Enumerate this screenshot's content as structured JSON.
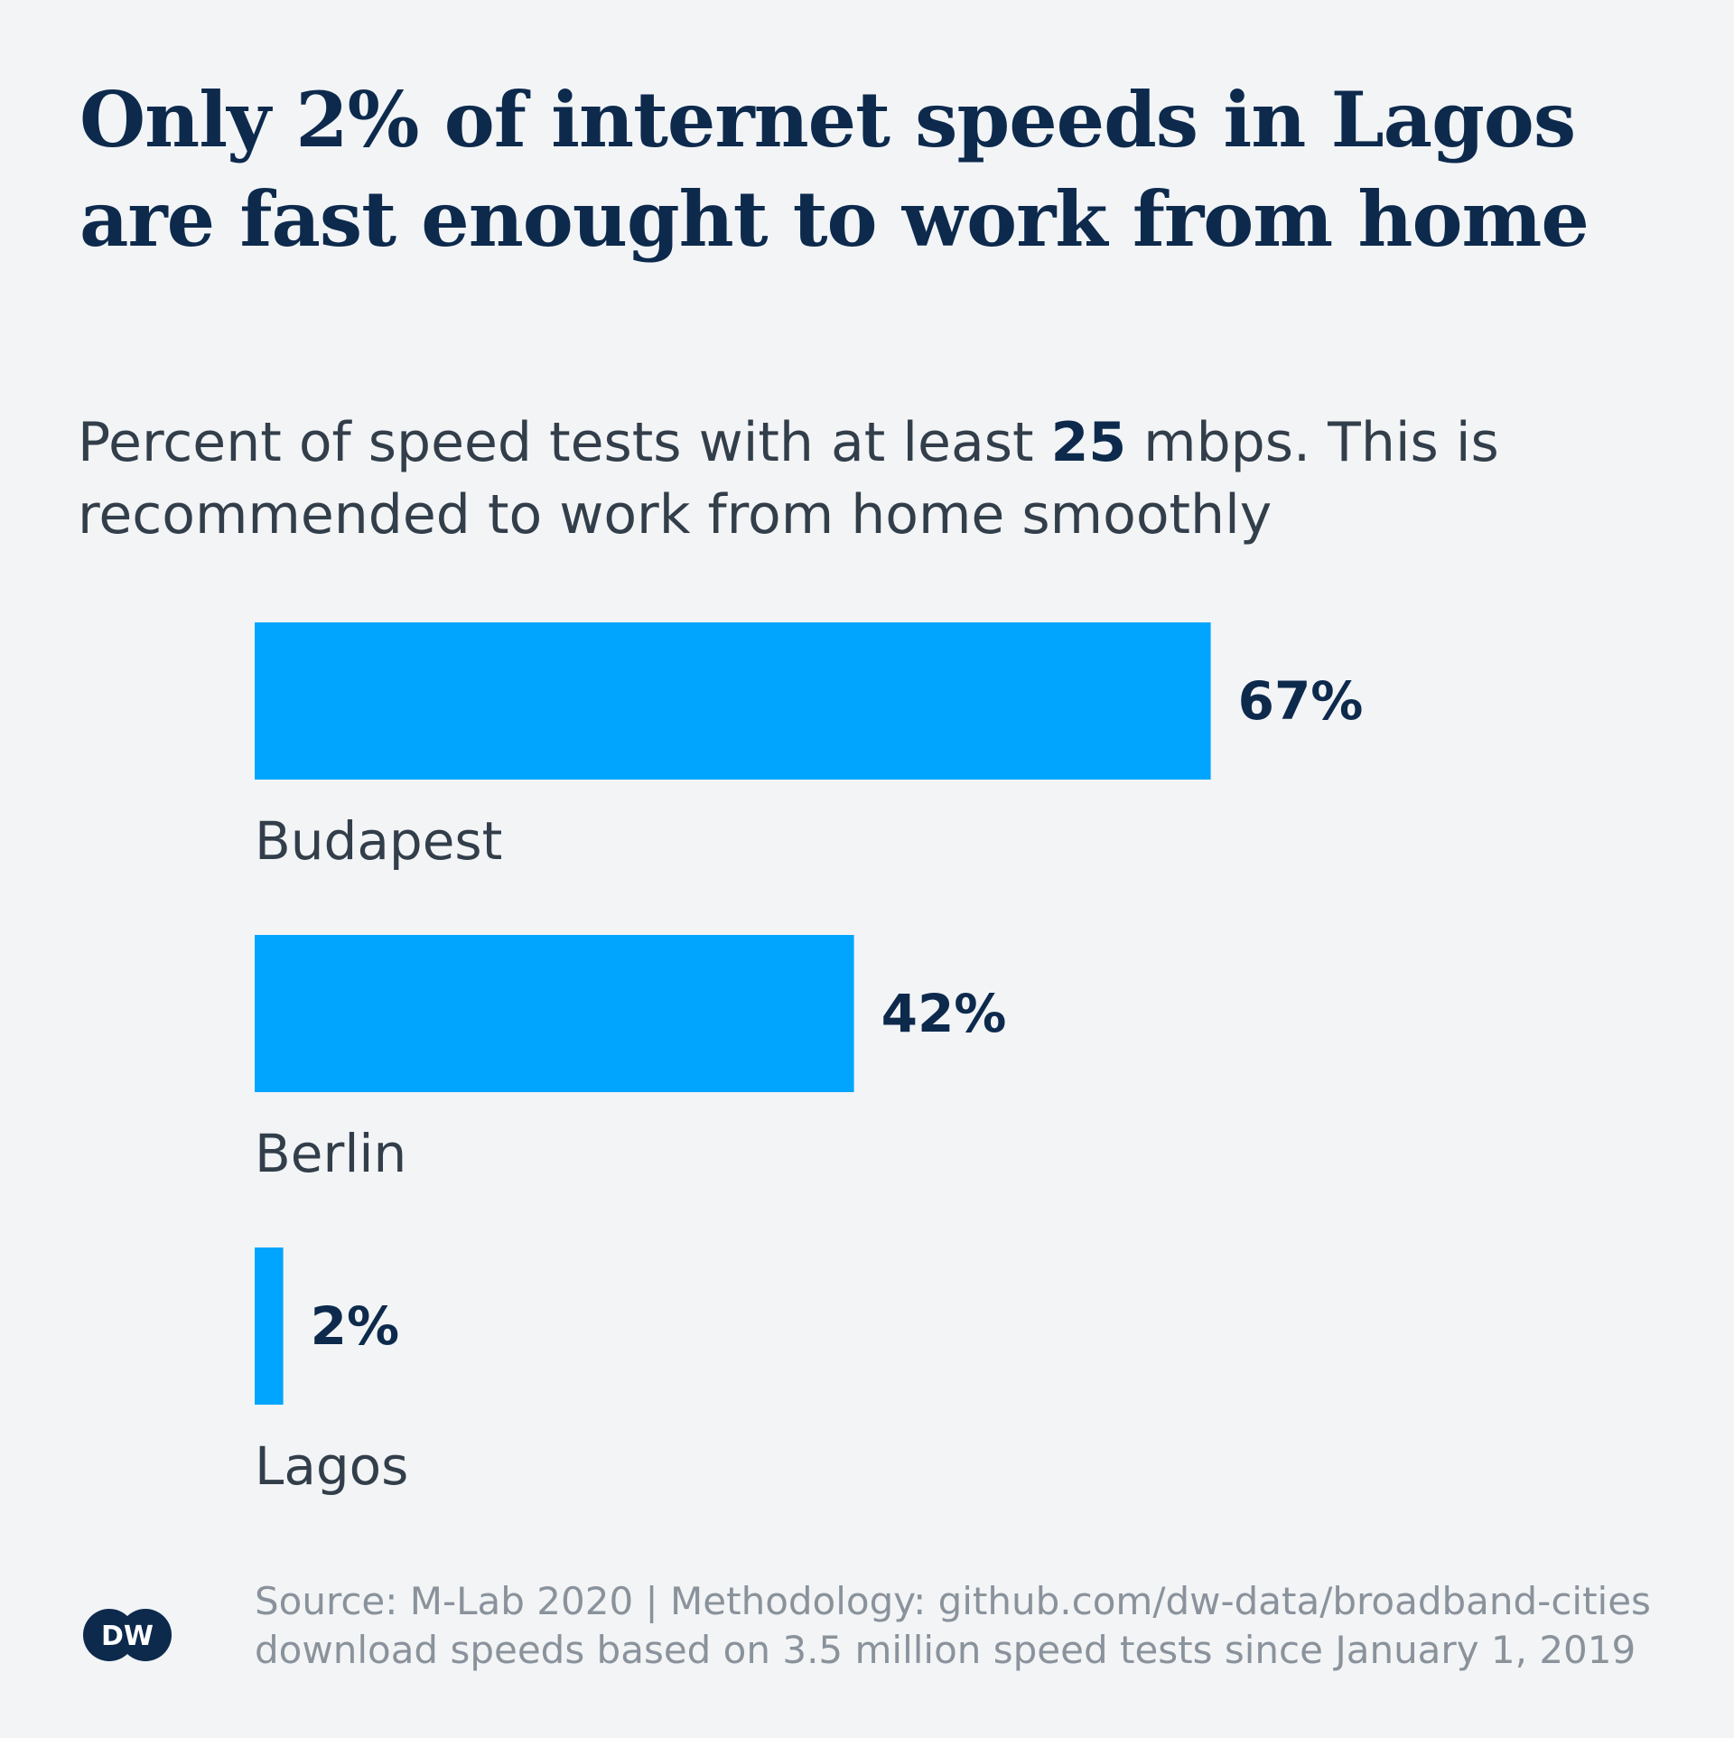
{
  "header": {
    "title": "Only 2% of internet speeds in Lagos are fast enought to work from home",
    "subtitle_before": "Percent of speed tests with at least ",
    "subtitle_highlight": "25",
    "subtitle_after": " mbps. This is recommended to work from home smoothly"
  },
  "chart_data": {
    "type": "bar",
    "orientation": "horizontal",
    "categories": [
      "Budapest",
      "Berlin",
      "Lagos"
    ],
    "values": [
      67,
      42,
      2
    ],
    "value_labels": [
      "67%",
      "42%",
      "2%"
    ],
    "xlim": [
      0,
      100
    ],
    "grid": false,
    "legend": "none",
    "bar_color": "#02a5fd",
    "label_color": "#0d2a4d",
    "category_color": "#323e4a"
  },
  "footer": {
    "source_line1": "Source: M-Lab 2020 | Methodology: github.com/dw-data/broadband-cities",
    "source_line2": "download speeds based on 3.5 million speed tests since January 1, 2019",
    "logo_text": "DW",
    "logo_icon": "dw-logo-icon",
    "logo_color": "#0d2a4d"
  }
}
